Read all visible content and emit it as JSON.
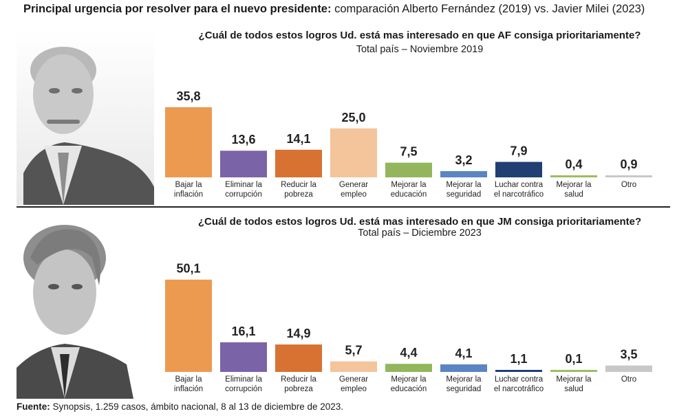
{
  "title": {
    "bold": "Principal urgencia por resolver para el nuevo presidente:",
    "rest": "comparación Alberto Fernández (2019) vs. Javier Milei (2023)"
  },
  "source": {
    "label": "Fuente:",
    "text": "Synopsis, 1.259 casos, ámbito nacional, 8 al 13 de diciembre de 2023."
  },
  "chart_data": [
    {
      "type": "bar",
      "title": "¿Cuál de todos estos logros Ud. está mas interesado en que AF consiga prioritariamente?",
      "subtitle": "Total país – Noviembre 2019",
      "categories": [
        [
          "Bajar la",
          "inflación"
        ],
        [
          "Eliminar la",
          "corrupción"
        ],
        [
          "Reducir la",
          "pobreza"
        ],
        [
          "Generar",
          "empleo"
        ],
        [
          "Mejorar la",
          "educación"
        ],
        [
          "Mejorar la",
          "seguridad"
        ],
        [
          "Luchar contra",
          "el narcotráfico"
        ],
        [
          "Mejorar la",
          "salud"
        ],
        [
          "Otro"
        ]
      ],
      "values": [
        35.8,
        13.6,
        14.1,
        25.0,
        7.5,
        3.2,
        7.9,
        0.4,
        0.9
      ],
      "value_labels": [
        "35,8",
        "13,6",
        "14,1",
        "25,0",
        "7,5",
        "3,2",
        "7,9",
        "0,4",
        "0,9"
      ],
      "colors": [
        "#ec9a50",
        "#7b63a8",
        "#d87232",
        "#f4c49a",
        "#93b65d",
        "#5a85c2",
        "#203f73",
        "#9bbd62",
        "#c8c8c8"
      ],
      "ylim": [
        0,
        52
      ]
    },
    {
      "type": "bar",
      "title": "¿Cuál de todos estos logros Ud. está mas interesado en que JM consiga prioritariamente?",
      "subtitle": "Total país – Diciembre 2023",
      "categories": [
        [
          "Bajar la",
          "inflación"
        ],
        [
          "Eliminar la",
          "corrupción"
        ],
        [
          "Reducir la",
          "pobreza"
        ],
        [
          "Generar",
          "empleo"
        ],
        [
          "Mejorar la",
          "educación"
        ],
        [
          "Mejorar la",
          "seguridad"
        ],
        [
          "Luchar contra",
          "el narcotráfico"
        ],
        [
          "Mejorar la",
          "salud"
        ],
        [
          "Otro"
        ]
      ],
      "values": [
        50.1,
        16.1,
        14.9,
        5.7,
        4.4,
        4.1,
        1.1,
        0.1,
        3.5
      ],
      "value_labels": [
        "50,1",
        "16,1",
        "14,9",
        "5,7",
        "4,4",
        "4,1",
        "1,1",
        "0,1",
        "3,5"
      ],
      "colors": [
        "#ec9a50",
        "#7b63a8",
        "#d87232",
        "#f4c49a",
        "#93b65d",
        "#5a85c2",
        "#203f73",
        "#9bbd62",
        "#c8c8c8"
      ],
      "ylim": [
        0,
        52
      ]
    }
  ]
}
